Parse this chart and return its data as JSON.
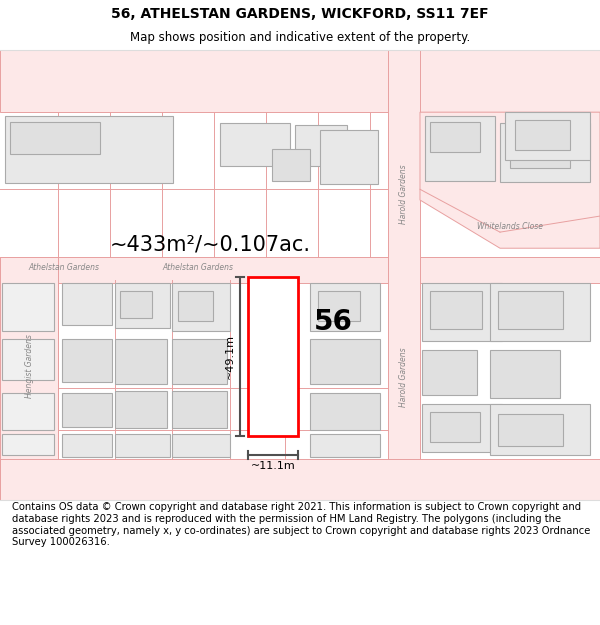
{
  "title_line1": "56, ATHELSTAN GARDENS, WICKFORD, SS11 7EF",
  "title_line2": "Map shows position and indicative extent of the property.",
  "area_text": "~433m²/~0.107ac.",
  "label_56": "56",
  "dim_height": "~49.1m",
  "dim_width": "~11.1m",
  "footer_text": "Contains OS data © Crown copyright and database right 2021. This information is subject to Crown copyright and database rights 2023 and is reproduced with the permission of HM Land Registry. The polygons (including the associated geometry, namely x, y co-ordinates) are subject to Crown copyright and database rights 2023 Ordnance Survey 100026316.",
  "bg_color": "#ffffff",
  "road_line_color": "#e8a0a0",
  "road_fill_color": "#fde8e8",
  "building_fill": "#e8e8e8",
  "building_stroke": "#aaaaaa",
  "highlight_fill": "#ffffff",
  "highlight_stroke": "#ff0000",
  "dim_line_color": "#505050",
  "street_label_color": "#888888",
  "area_text_color": "#000000",
  "footer_text_size": 7.2,
  "title_size1": 10,
  "title_size2": 8.5
}
